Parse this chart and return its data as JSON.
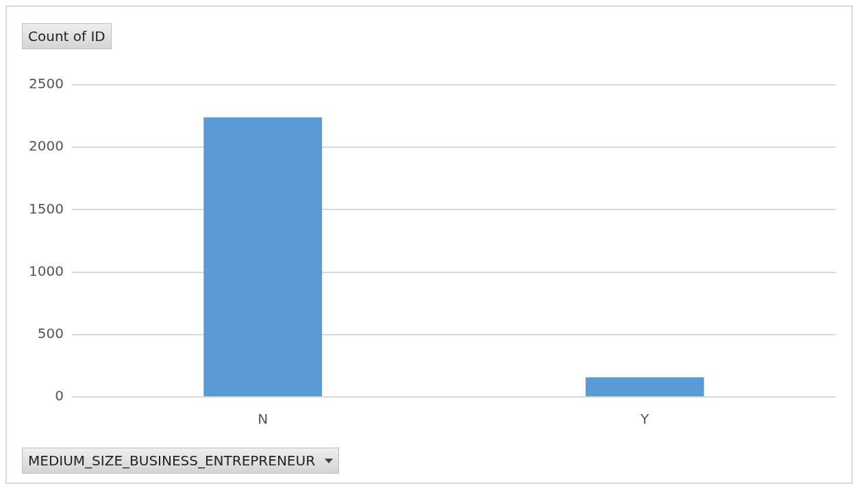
{
  "chart_data": {
    "type": "bar",
    "ylabel": "Count of ID",
    "xlabel": "MEDIUM_SIZE_BUSINESS_ENTREPRENEUR",
    "categories": [
      "N",
      "Y"
    ],
    "values": [
      2240,
      157
    ],
    "color": "#5b9bd5",
    "ylim": [
      0,
      2500
    ],
    "yticks": [
      0,
      500,
      1000,
      1500,
      2000,
      2500
    ],
    "grid": "y",
    "legend": false
  }
}
